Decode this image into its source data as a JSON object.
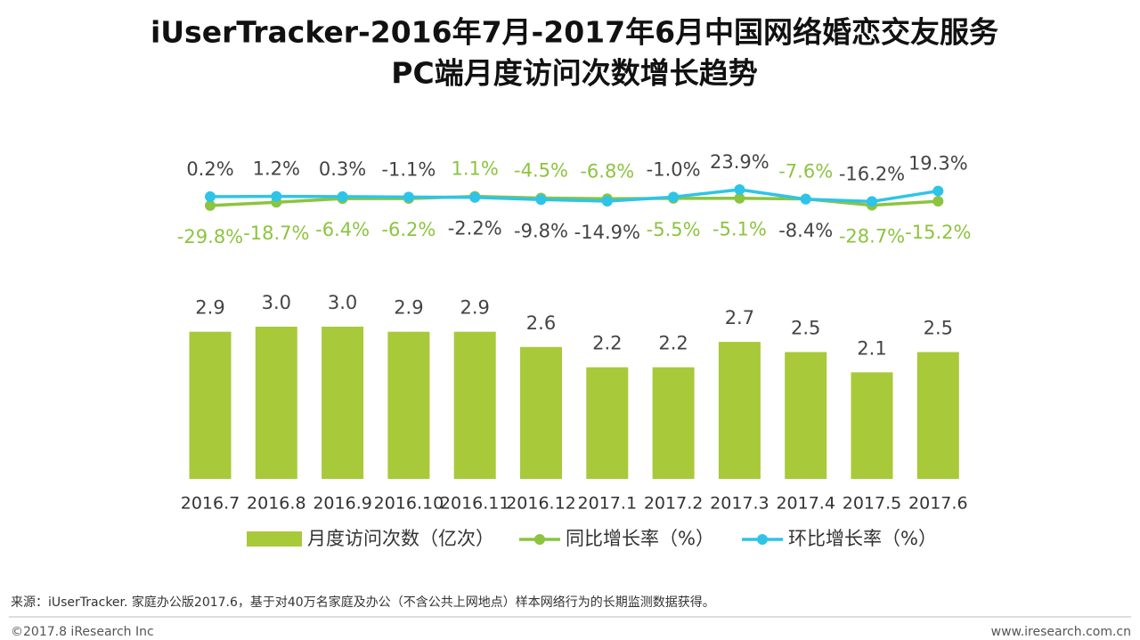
{
  "chart_data": {
    "type": "bar",
    "title": [
      "iUserTracker-2016年7月-2017年6月中国网络婚恋交友服务",
      "PC端月度访问次数增长趋势"
    ],
    "categories": [
      "2016.7",
      "2016.8",
      "2016.9",
      "2016.10",
      "2016.11",
      "2016.12",
      "2017.1",
      "2017.2",
      "2017.3",
      "2017.4",
      "2017.5",
      "2017.6"
    ],
    "ylim": [
      0,
      3
    ],
    "y2lim": [
      -300,
      300
    ],
    "series": [
      {
        "name": "月度访问次数（亿次）",
        "type": "bar",
        "color": "#a8c93a",
        "values": [
          2.9,
          3.0,
          3.0,
          2.9,
          2.9,
          2.6,
          2.2,
          2.2,
          2.7,
          2.5,
          2.1,
          2.5
        ],
        "value_labels": [
          "2.9",
          "3.0",
          "3.0",
          "2.9",
          "2.9",
          "2.6",
          "2.2",
          "2.2",
          "2.7",
          "2.5",
          "2.1",
          "2.5"
        ]
      },
      {
        "name": "同比增长率（%）",
        "type": "line",
        "axis": "y2",
        "color": "#8cc43f",
        "values": [
          -29.8,
          -18.7,
          -6.4,
          -6.2,
          1.1,
          -4.5,
          -6.8,
          -5.5,
          -5.1,
          -7.6,
          -28.7,
          -15.2
        ],
        "value_labels": [
          "-29.8%",
          "-18.7%",
          "-6.4%",
          "-6.2%",
          "1.1%",
          "-4.5%",
          "-6.8%",
          "-5.5%",
          "-5.1%",
          "-7.6%",
          "-28.7%",
          "-15.2%"
        ]
      },
      {
        "name": "环比增长率（%）",
        "type": "line",
        "axis": "y2",
        "color": "#2ec4e8",
        "values": [
          0.2,
          1.2,
          0.3,
          -1.1,
          -2.2,
          -9.8,
          -14.9,
          -1.0,
          23.9,
          -8.4,
          -16.2,
          19.3
        ],
        "value_labels": [
          "0.2%",
          "1.2%",
          "0.3%",
          "-1.1%",
          "-2.2%",
          "-9.8%",
          "-14.9%",
          "-1.0%",
          "23.9%",
          "-8.4%",
          "-16.2%",
          "19.3%"
        ]
      }
    ],
    "source": "来源：iUserTracker. 家庭办公版2017.6，基于对40万名家庭及办公（不含公共上网地点）样本网络行为的长期监测数据获得。",
    "copyright": "©2017.8 iResearch Inc",
    "website": "www.iresearch.com.cn"
  }
}
